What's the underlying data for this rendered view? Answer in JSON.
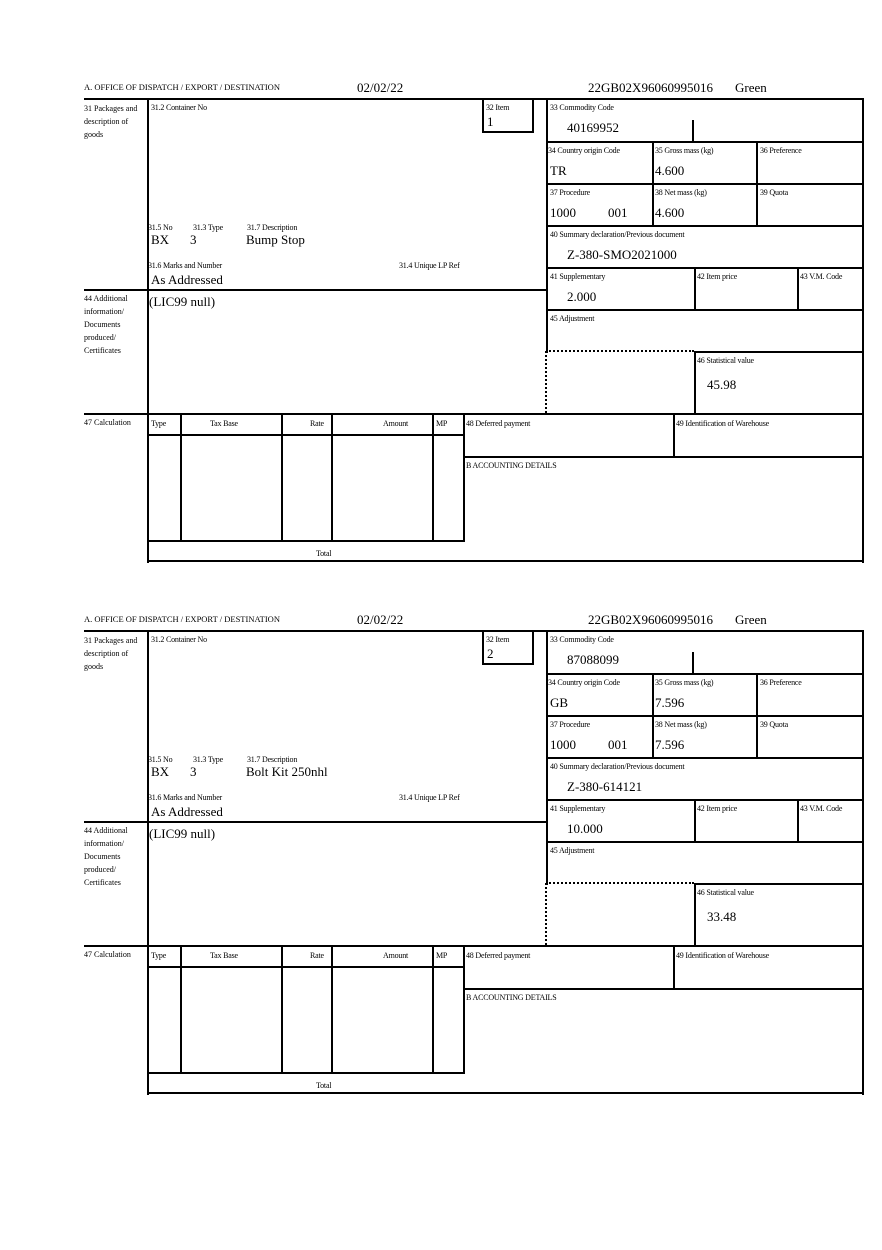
{
  "labels": {
    "office": "A.  OFFICE OF DISPATCH / EXPORT / DESTINATION",
    "packages": "31 Packages and description of goods",
    "container_no": "31.2 Container No",
    "item": "32 Item",
    "no": "31.5 No",
    "type": "31.3 Type",
    "description": "31.7 Description",
    "marks": "31.6 Marks and Number",
    "unique_lp": "31.4 Unique LP Ref",
    "additional": "44 Additional information/ Documents produced/ Certificates",
    "commodity": "33 Commodity Code",
    "country": "34 Country origin Code",
    "gross": "35 Gross mass (kg)",
    "preference": "36 Preference",
    "procedure": "37 Procedure",
    "net": "38 Net mass (kg)",
    "quota": "39 Quota",
    "summary": "40 Summary declaration/Previous document",
    "supplementary": "41 Supplementary",
    "item_price": "42 Item price",
    "vm_code": "43 V.M. Code",
    "adjustment": "45 Adjustment",
    "statistical": "46 Statistical value",
    "calculation": "47 Calculation",
    "calc_type": "Type",
    "calc_tax_base": "Tax Base",
    "calc_rate": "Rate",
    "calc_amount": "Amount",
    "calc_mp": "MP",
    "calc_total": "Total",
    "deferred": "48 Deferred payment",
    "warehouse": "49 Identification of Warehouse",
    "accounting": "B ACCOUNTING DETAILS"
  },
  "forms": [
    {
      "date": "02/02/22",
      "mrn": "22GB02X96060995016",
      "route": "Green",
      "item": "1",
      "no": "BX",
      "type": "3",
      "description": "Bump Stop",
      "marks": "As Addressed",
      "additional": "(LIC99 null)",
      "commodity": "40169952",
      "country": "TR",
      "gross": "4.600",
      "procedure": "1000",
      "procedure_add": "001",
      "net": "4.600",
      "summary": "Z-380-SMO2021000",
      "supplementary": "2.000",
      "statistical": "45.98"
    },
    {
      "date": "02/02/22",
      "mrn": "22GB02X96060995016",
      "route": "Green",
      "item": "2",
      "no": "BX",
      "type": "3",
      "description": "Bolt Kit 250nhl",
      "marks": "As Addressed",
      "additional": "(LIC99 null)",
      "commodity": "87088099",
      "country": "GB",
      "gross": "7.596",
      "procedure": "1000",
      "procedure_add": "001",
      "net": "7.596",
      "summary": "Z-380-614121",
      "supplementary": "10.000",
      "statistical": "33.48"
    }
  ]
}
